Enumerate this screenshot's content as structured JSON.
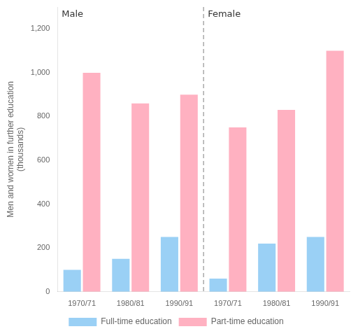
{
  "chart_data": {
    "type": "bar",
    "categories": [
      "1970/71",
      "1980/81",
      "1990/91",
      "1970/71",
      "1980/81",
      "1990/91"
    ],
    "series": [
      {
        "name": "Full-time education",
        "values": [
          100,
          150,
          250,
          60,
          220,
          250
        ]
      },
      {
        "name": "Part-time education",
        "values": [
          1000,
          860,
          900,
          750,
          830,
          1100
        ]
      }
    ],
    "ylabel": "Men and women in further education\n(thousands)",
    "annotations": [
      "Male",
      "Female"
    ],
    "ylim": [
      0,
      1300
    ],
    "yticks": [
      0,
      200,
      400,
      600,
      800,
      1000,
      1200
    ],
    "grid": false,
    "legend": "bottom"
  }
}
